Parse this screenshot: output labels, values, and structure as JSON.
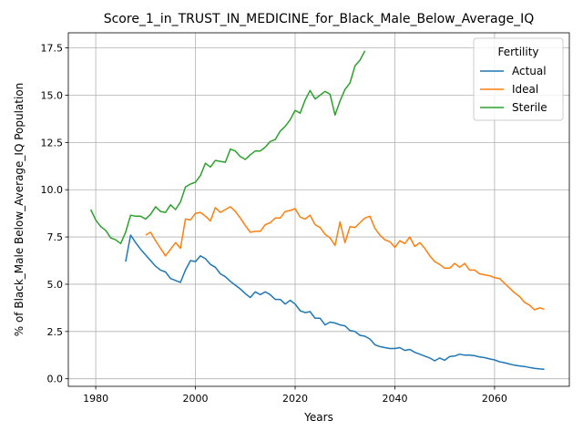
{
  "chart_data": {
    "type": "line",
    "title": "Score_1_in_TRUST_IN_MEDICINE_for_Black_Male_Below_Average_IQ",
    "xlabel": "Years",
    "ylabel": "% of Black_Male Below_Average_IQ Population",
    "xlim": [
      1974.5,
      2075
    ],
    "ylim": [
      -0.4,
      18.3
    ],
    "xticks": [
      1980,
      2000,
      2020,
      2040,
      2060
    ],
    "yticks": [
      0.0,
      2.5,
      5.0,
      7.5,
      10.0,
      12.5,
      15.0,
      17.5
    ],
    "xtick_labels": [
      "1980",
      "2000",
      "2020",
      "2040",
      "2060"
    ],
    "ytick_labels": [
      "0.0",
      "2.5",
      "5.0",
      "7.5",
      "10.0",
      "12.5",
      "15.0",
      "17.5"
    ],
    "grid": true,
    "legend": {
      "title": "Fertility",
      "placement": "top-right"
    },
    "series": [
      {
        "name": "Actual",
        "color": "#1f77b4",
        "x": [
          1986,
          1987,
          1988,
          1989,
          1990,
          1991,
          1992,
          1993,
          1994,
          1995,
          1996,
          1997,
          1998,
          1999,
          2000,
          2001,
          2002,
          2003,
          2004,
          2005,
          2006,
          2007,
          2008,
          2009,
          2010,
          2011,
          2012,
          2013,
          2014,
          2015,
          2016,
          2017,
          2018,
          2019,
          2020,
          2021,
          2022,
          2023,
          2024,
          2025,
          2026,
          2027,
          2028,
          2029,
          2030,
          2031,
          2032,
          2033,
          2034,
          2035,
          2036,
          2037,
          2038,
          2039,
          2040,
          2041,
          2042,
          2043,
          2044,
          2045,
          2046,
          2047,
          2048,
          2049,
          2050,
          2051,
          2052,
          2053,
          2054,
          2055,
          2056,
          2057,
          2058,
          2059,
          2060,
          2061,
          2062,
          2063,
          2064,
          2065,
          2066,
          2067,
          2068,
          2069,
          2070
        ],
        "values": [
          6.2,
          7.6,
          7.2,
          6.85,
          6.55,
          6.25,
          5.95,
          5.75,
          5.65,
          5.3,
          5.2,
          5.1,
          5.75,
          6.25,
          6.2,
          6.5,
          6.35,
          6.05,
          5.9,
          5.55,
          5.4,
          5.15,
          4.95,
          4.75,
          4.5,
          4.3,
          4.6,
          4.45,
          4.6,
          4.45,
          4.2,
          4.2,
          3.95,
          4.15,
          3.95,
          3.6,
          3.5,
          3.55,
          3.2,
          3.2,
          2.85,
          3.0,
          2.95,
          2.85,
          2.8,
          2.55,
          2.5,
          2.3,
          2.25,
          2.1,
          1.8,
          1.7,
          1.65,
          1.6,
          1.6,
          1.65,
          1.5,
          1.55,
          1.4,
          1.3,
          1.2,
          1.1,
          0.95,
          1.1,
          0.98,
          1.18,
          1.2,
          1.3,
          1.25,
          1.25,
          1.22,
          1.15,
          1.12,
          1.05,
          1.0,
          0.9,
          0.85,
          0.78,
          0.72,
          0.68,
          0.65,
          0.6,
          0.55,
          0.52,
          0.5
        ]
      },
      {
        "name": "Ideal",
        "color": "#ff7f0e",
        "x": [
          1990,
          1991,
          1992,
          1993,
          1994,
          1995,
          1996,
          1997,
          1998,
          1999,
          2000,
          2001,
          2002,
          2003,
          2004,
          2005,
          2006,
          2007,
          2008,
          2009,
          2010,
          2011,
          2012,
          2013,
          2014,
          2015,
          2016,
          2017,
          2018,
          2019,
          2020,
          2021,
          2022,
          2023,
          2024,
          2025,
          2026,
          2027,
          2028,
          2029,
          2030,
          2031,
          2032,
          2033,
          2034,
          2035,
          2036,
          2037,
          2038,
          2039,
          2040,
          2041,
          2042,
          2043,
          2044,
          2045,
          2046,
          2047,
          2048,
          2049,
          2050,
          2051,
          2052,
          2053,
          2054,
          2055,
          2056,
          2057,
          2058,
          2059,
          2060,
          2061,
          2062,
          2063,
          2064,
          2065,
          2066,
          2067,
          2068,
          2069,
          2070
        ],
        "values": [
          7.6,
          7.75,
          7.3,
          6.9,
          6.5,
          6.85,
          7.2,
          6.9,
          8.45,
          8.4,
          8.75,
          8.8,
          8.6,
          8.35,
          9.05,
          8.8,
          8.95,
          9.1,
          8.85,
          8.5,
          8.1,
          7.75,
          7.8,
          7.8,
          8.15,
          8.25,
          8.5,
          8.5,
          8.85,
          8.9,
          9.0,
          8.55,
          8.45,
          8.65,
          8.15,
          8.0,
          7.65,
          7.45,
          7.05,
          8.3,
          7.2,
          8.05,
          8.0,
          8.25,
          8.5,
          8.6,
          7.95,
          7.6,
          7.35,
          7.25,
          6.95,
          7.3,
          7.15,
          7.5,
          7.0,
          7.2,
          6.9,
          6.5,
          6.2,
          6.05,
          5.85,
          5.85,
          6.1,
          5.9,
          6.1,
          5.75,
          5.75,
          5.55,
          5.5,
          5.45,
          5.35,
          5.3,
          5.05,
          4.8,
          4.55,
          4.35,
          4.05,
          3.9,
          3.65,
          3.75,
          3.68
        ]
      },
      {
        "name": "Sterile",
        "color": "#2ca02c",
        "x": [
          1979,
          1980,
          1981,
          1982,
          1983,
          1984,
          1985,
          1986,
          1987,
          1988,
          1989,
          1990,
          1991,
          1992,
          1993,
          1994,
          1995,
          1996,
          1997,
          1998,
          1999,
          2000,
          2001,
          2002,
          2003,
          2004,
          2005,
          2006,
          2007,
          2008,
          2009,
          2010,
          2011,
          2012,
          2013,
          2014,
          2015,
          2016,
          2017,
          2018,
          2019,
          2020,
          2021,
          2022,
          2023,
          2024,
          2025,
          2026,
          2027,
          2028,
          2029,
          2030,
          2031,
          2032,
          2033,
          2034
        ],
        "values": [
          8.95,
          8.4,
          8.05,
          7.85,
          7.45,
          7.35,
          7.15,
          7.75,
          8.65,
          8.6,
          8.6,
          8.45,
          8.7,
          9.1,
          8.85,
          8.8,
          9.2,
          8.95,
          9.35,
          10.15,
          10.3,
          10.4,
          10.75,
          11.4,
          11.2,
          11.55,
          11.5,
          11.45,
          12.15,
          12.05,
          11.75,
          11.6,
          11.85,
          12.05,
          12.05,
          12.25,
          12.55,
          12.65,
          13.1,
          13.35,
          13.7,
          14.2,
          14.05,
          14.75,
          15.25,
          14.8,
          15.0,
          15.2,
          15.05,
          13.95,
          14.7,
          15.3,
          15.65,
          16.55,
          16.85,
          17.35
        ]
      }
    ]
  }
}
